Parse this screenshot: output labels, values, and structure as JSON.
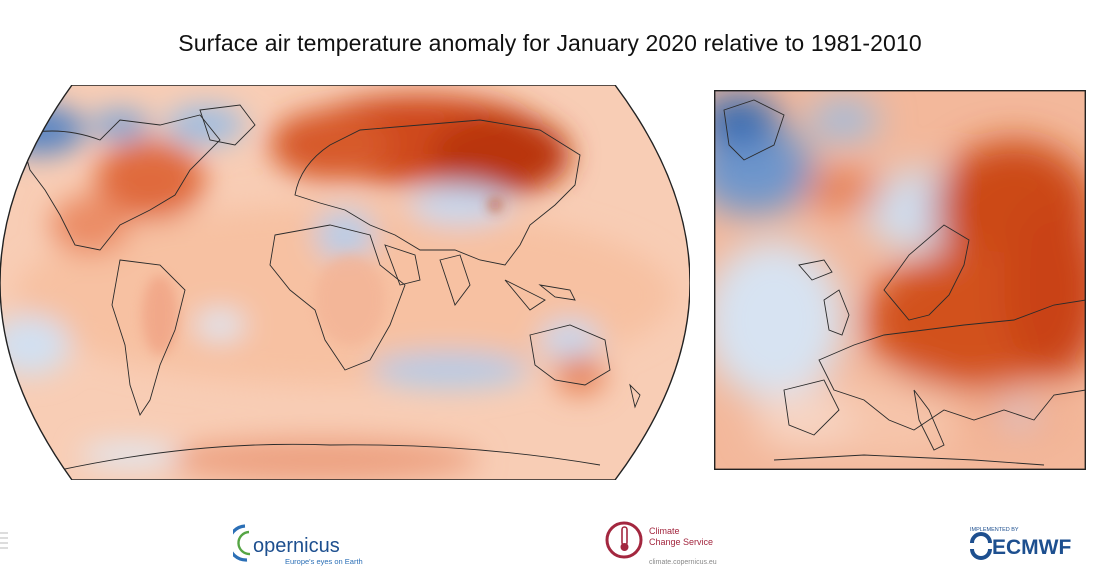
{
  "title": "Surface air temperature anomaly for January 2020 relative to 1981-2010",
  "maps": {
    "world": {
      "projection": "Robinson",
      "region": "Global"
    },
    "europe": {
      "region": "Europe"
    }
  },
  "colors": {
    "warm_strong": "#c0390f",
    "warm_mid": "#e8744a",
    "warm_light": "#f6c3a6",
    "neutral": "#faf3ef",
    "cool_light": "#c9dbef",
    "cool_strong": "#2e67b1",
    "coast": "#2b2b2b"
  },
  "logos": {
    "copernicus": {
      "name": "opernicus",
      "tagline": "Europe's eyes on Earth"
    },
    "c3s": {
      "line1": "Climate",
      "line2": "Change Service",
      "url": "climate.copernicus.eu"
    },
    "ecmwf": {
      "implemented_by": "IMPLEMENTED BY",
      "name": "ECMWF"
    }
  }
}
